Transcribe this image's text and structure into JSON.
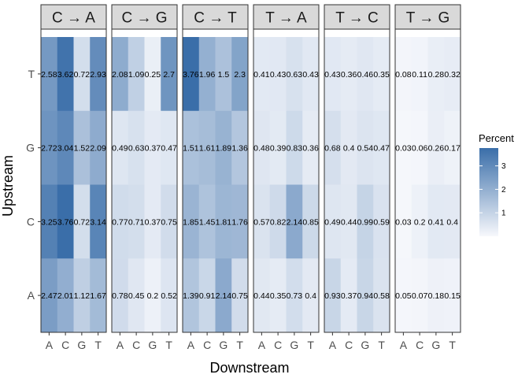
{
  "chart_data": {
    "type": "heatmap",
    "xlabel": "Downstream",
    "ylabel": "Upstream",
    "x_categories": [
      "A",
      "C",
      "G",
      "T"
    ],
    "y_categories": [
      "T",
      "G",
      "C",
      "A"
    ],
    "legend": {
      "title": "Percent",
      "ticks": [
        1,
        2,
        3
      ],
      "range": [
        0,
        3.76
      ],
      "low_color": "#f7f8fc",
      "high_color": "#3a6ea9",
      "position": "right"
    },
    "panels": [
      {
        "name": "C → A",
        "rows": [
          {
            "upstream": "T",
            "values": [
              2.58,
              3.62,
              0.72,
              2.93
            ]
          },
          {
            "upstream": "G",
            "values": [
              2.72,
              3.04,
              1.52,
              2.09
            ]
          },
          {
            "upstream": "C",
            "values": [
              3.25,
              3.76,
              0.72,
              3.14
            ]
          },
          {
            "upstream": "A",
            "values": [
              2.47,
              2.01,
              1.12,
              1.67
            ]
          }
        ]
      },
      {
        "name": "C → G",
        "rows": [
          {
            "upstream": "T",
            "values": [
              2.08,
              1.09,
              0.25,
              2.7
            ]
          },
          {
            "upstream": "G",
            "values": [
              0.49,
              0.63,
              0.37,
              0.47
            ]
          },
          {
            "upstream": "C",
            "values": [
              0.77,
              0.71,
              0.37,
              0.75
            ]
          },
          {
            "upstream": "A",
            "values": [
              0.78,
              0.45,
              0.2,
              0.52
            ]
          }
        ]
      },
      {
        "name": "C → T",
        "rows": [
          {
            "upstream": "T",
            "values": [
              3.76,
              1.96,
              1.5,
              2.3
            ]
          },
          {
            "upstream": "G",
            "values": [
              1.51,
              1.61,
              1.89,
              1.36
            ]
          },
          {
            "upstream": "C",
            "values": [
              1.85,
              1.45,
              1.81,
              1.76
            ]
          },
          {
            "upstream": "A",
            "values": [
              1.39,
              0.91,
              2.14,
              0.75
            ]
          }
        ]
      },
      {
        "name": "T → A",
        "rows": [
          {
            "upstream": "T",
            "values": [
              0.41,
              0.43,
              0.63,
              0.43
            ]
          },
          {
            "upstream": "G",
            "values": [
              0.48,
              0.39,
              0.83,
              0.36
            ]
          },
          {
            "upstream": "C",
            "values": [
              0.57,
              0.82,
              2.14,
              0.85
            ]
          },
          {
            "upstream": "A",
            "values": [
              0.44,
              0.35,
              0.73,
              0.4
            ]
          }
        ]
      },
      {
        "name": "T → C",
        "rows": [
          {
            "upstream": "T",
            "values": [
              0.43,
              0.36,
              0.46,
              0.35
            ]
          },
          {
            "upstream": "G",
            "values": [
              0.68,
              0.4,
              0.54,
              0.47
            ]
          },
          {
            "upstream": "C",
            "values": [
              0.49,
              0.44,
              0.99,
              0.59
            ]
          },
          {
            "upstream": "A",
            "values": [
              0.93,
              0.37,
              0.94,
              0.58
            ]
          }
        ]
      },
      {
        "name": "T → G",
        "rows": [
          {
            "upstream": "T",
            "values": [
              0.08,
              0.11,
              0.28,
              0.32
            ]
          },
          {
            "upstream": "G",
            "values": [
              0.03,
              0.06,
              0.26,
              0.17
            ]
          },
          {
            "upstream": "C",
            "values": [
              0.03,
              0.2,
              0.41,
              0.4
            ]
          },
          {
            "upstream": "A",
            "values": [
              0.05,
              0.07,
              0.18,
              0.15
            ]
          }
        ]
      }
    ]
  }
}
